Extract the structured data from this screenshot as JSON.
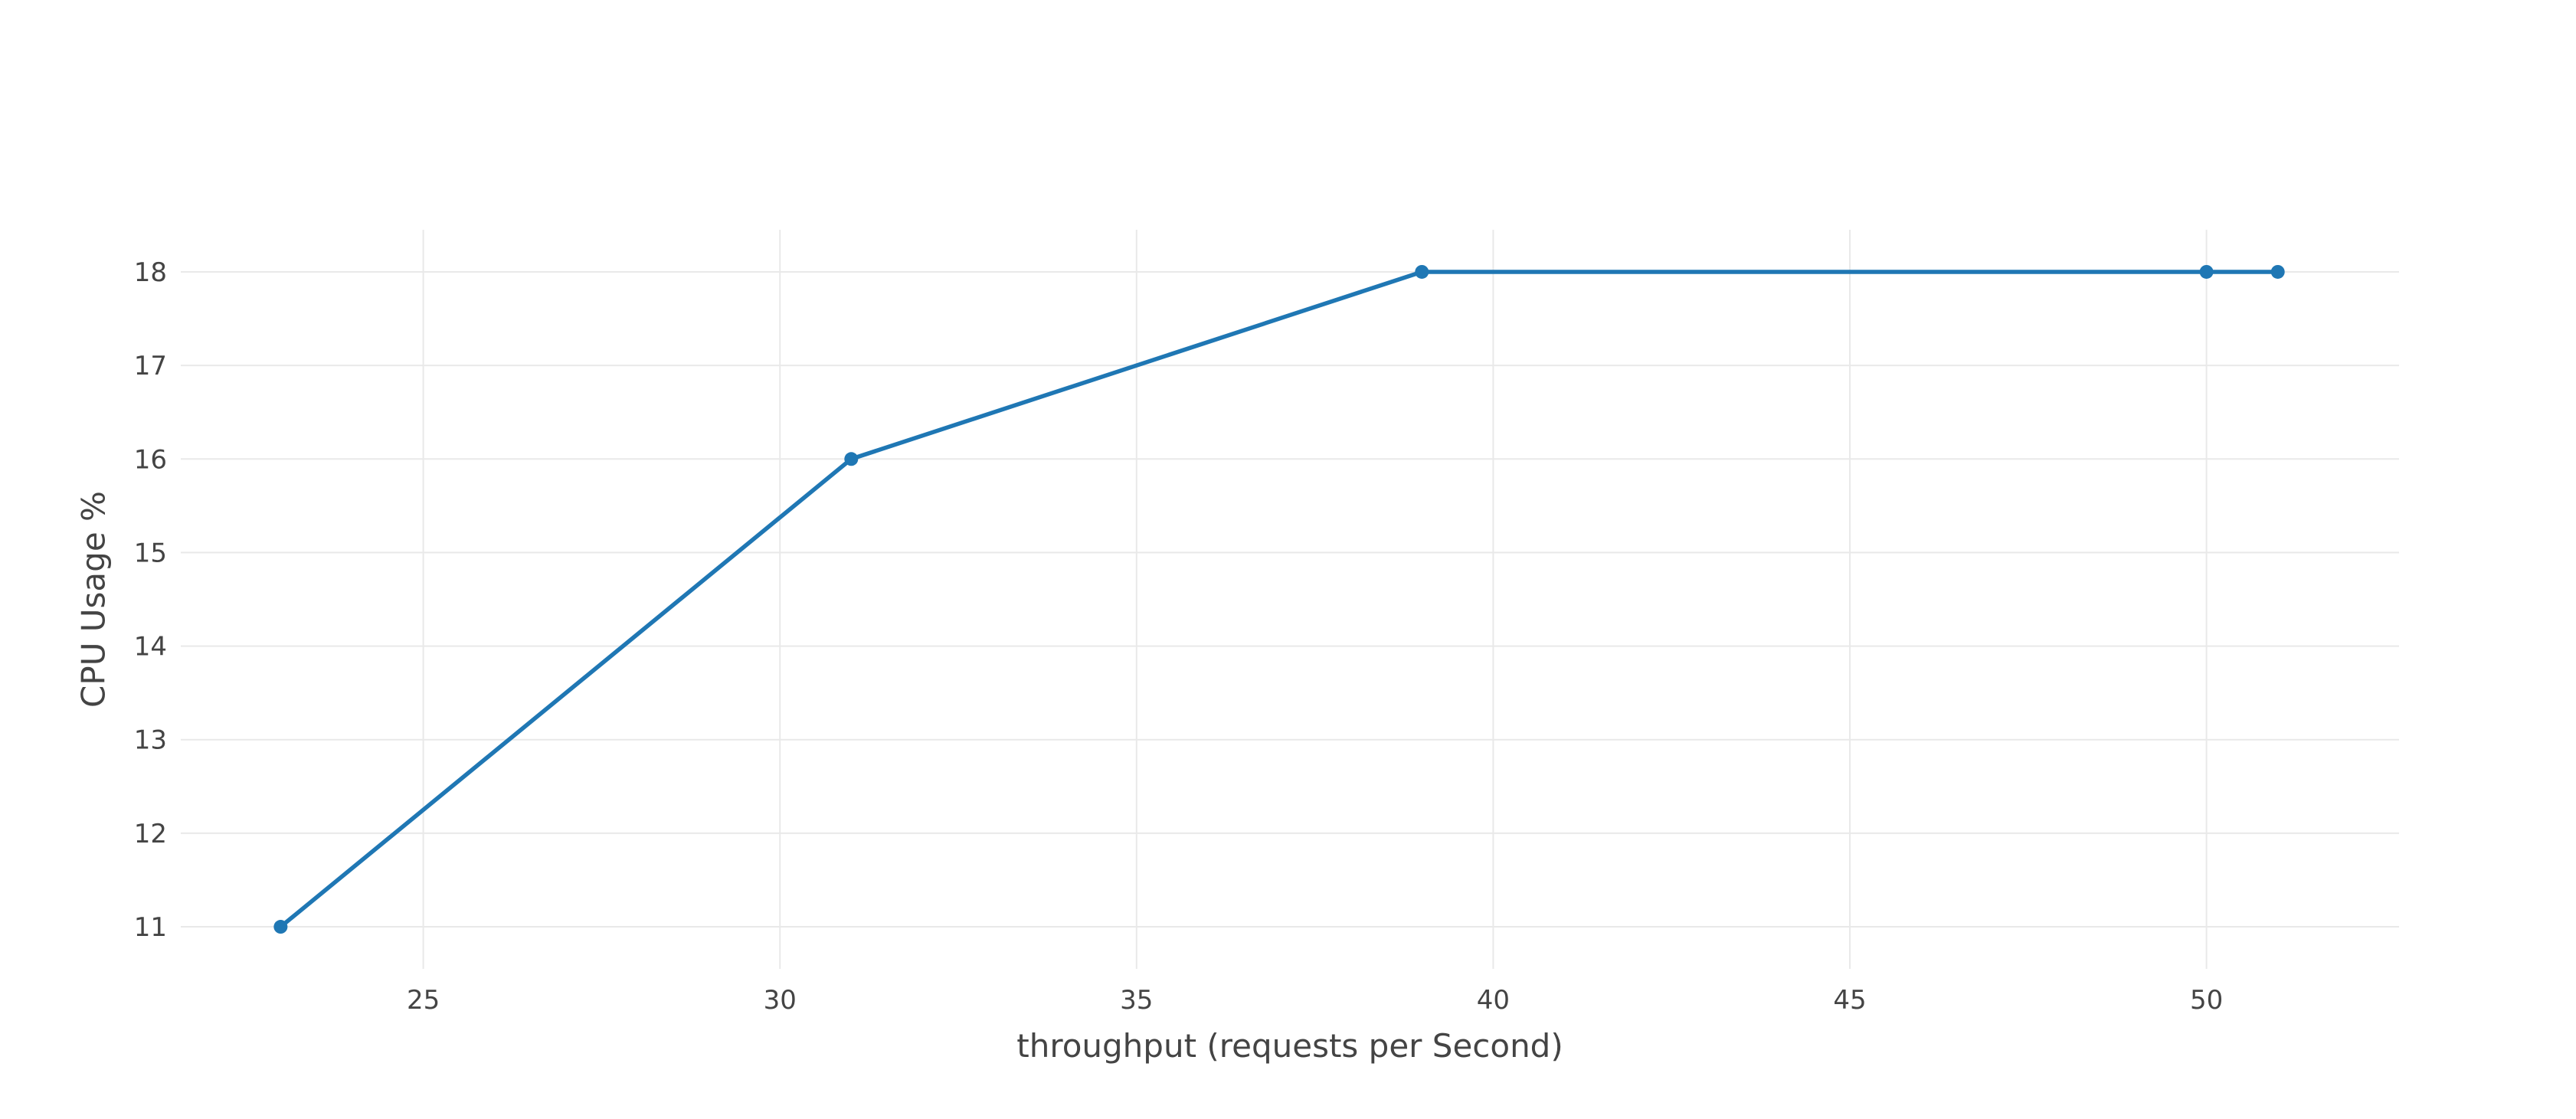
{
  "chart_data": {
    "type": "line",
    "title": "",
    "xlabel": "throughput (requests per Second)",
    "ylabel": "CPU Usage %",
    "x": [
      23,
      31,
      39,
      50,
      51
    ],
    "series": [
      {
        "values": [
          11,
          16,
          18,
          18,
          18
        ],
        "color": "#1f77b4"
      }
    ],
    "xlim": [
      21.6,
      52.7
    ],
    "ylim": [
      10.55,
      18.45
    ],
    "xticks": [
      25,
      30,
      35,
      40,
      45,
      50
    ],
    "xtick_labels": [
      "25",
      "30",
      "35",
      "40",
      "45",
      "50"
    ],
    "yticks": [
      11,
      12,
      13,
      14,
      15,
      16,
      17,
      18
    ],
    "ytick_labels": [
      "11",
      "12",
      "13",
      "14",
      "15",
      "16",
      "17",
      "18"
    ],
    "grid": true,
    "legend": "none",
    "markers": true
  }
}
